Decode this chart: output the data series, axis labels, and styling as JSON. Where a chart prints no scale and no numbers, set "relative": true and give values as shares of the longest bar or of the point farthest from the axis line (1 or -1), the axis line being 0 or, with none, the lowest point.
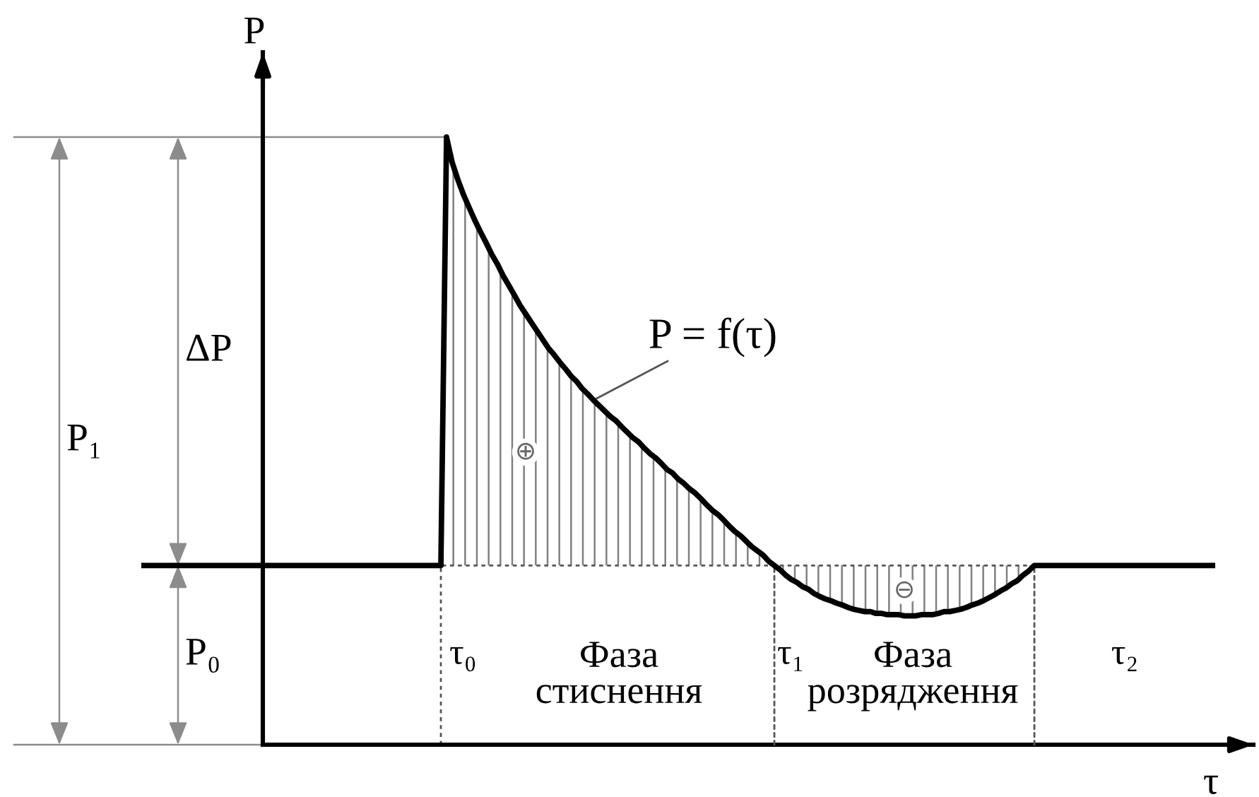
{
  "chart_data": {
    "type": "line",
    "relative": true,
    "xlabel": "τ",
    "ylabel": "P",
    "categories": [
      null,
      null,
      null,
      null,
      null,
      null,
      null,
      null,
      null,
      null,
      null,
      null,
      null,
      null,
      null,
      null,
      null,
      null,
      null,
      null,
      null,
      null,
      null,
      null,
      null,
      null,
      null,
      null,
      null,
      null,
      null,
      null,
      null,
      null,
      null,
      null,
      null,
      null,
      null,
      null,
      null,
      null,
      null,
      null,
      null,
      null,
      null,
      null,
      null,
      null,
      null,
      null,
      null,
      null,
      null,
      null,
      null,
      null,
      null,
      null,
      null,
      null,
      null,
      null,
      null,
      null,
      null,
      null,
      null,
      null,
      null,
      null,
      null,
      null,
      null,
      null,
      null,
      null,
      null,
      null,
      null,
      null,
      null,
      null,
      null,
      null,
      null,
      null,
      null,
      null,
      null,
      null,
      null,
      null,
      null,
      null,
      null,
      null,
      null,
      null,
      null,
      null,
      null,
      null,
      null,
      null,
      null,
      null,
      null,
      null,
      null,
      null,
      null,
      null,
      null,
      null,
      null,
      null,
      null,
      null,
      null,
      null,
      null,
      null,
      null,
      null,
      null,
      null,
      null,
      null,
      null,
      null,
      null,
      null,
      null,
      null,
      null,
      null,
      null,
      null,
      null,
      null,
      null,
      null,
      null,
      null,
      null,
      null,
      null,
      null,
      null,
      null,
      null,
      null,
      null,
      null,
      null,
      null,
      null,
      null,
      null,
      null,
      null,
      null,
      null,
      null,
      null,
      null,
      null,
      null,
      null,
      null,
      null,
      null,
      null,
      null,
      null,
      null,
      null,
      null,
      null,
      null,
      null,
      null,
      null,
      null,
      null,
      null,
      null,
      null,
      null
    ],
    "series": [
      {
        "name": "P = f(τ)",
        "color": "#000000",
        "values": [
          0.295,
          0.295,
          0.295,
          0.295,
          0.295,
          0.295,
          0.295,
          0.295,
          0.295,
          0.295,
          0.295,
          0.295,
          0.295,
          0.295,
          0.295,
          0.295,
          0.295,
          0.295,
          0.295,
          0.295,
          0.295,
          0.295,
          0.295,
          0.295,
          0.295,
          0.295,
          0.295,
          0.295,
          0.295,
          0.295,
          0.295,
          0.295,
          0.295,
          0.295,
          0.295,
          0.295,
          0.295,
          0.295,
          0.295,
          0.295,
          0.295,
          0.295,
          0.295,
          0.295,
          0.295,
          0.295,
          0.295,
          0.295,
          0.295,
          0.295,
          0.295,
          0.295,
          0.295,
          0.295,
          1.0,
          0.958,
          0.93,
          0.905,
          0.884,
          0.863,
          0.844,
          0.826,
          0.807,
          0.791,
          0.772,
          0.756,
          0.74,
          0.723,
          0.709,
          0.695,
          0.681,
          0.667,
          0.653,
          0.642,
          0.63,
          0.619,
          0.607,
          0.598,
          0.586,
          0.577,
          0.567,
          0.558,
          0.549,
          0.54,
          0.533,
          0.523,
          0.514,
          0.505,
          0.498,
          0.488,
          0.479,
          0.472,
          0.463,
          0.453,
          0.447,
          0.437,
          0.43,
          0.421,
          0.414,
          0.405,
          0.395,
          0.386,
          0.379,
          0.37,
          0.36,
          0.351,
          0.344,
          0.335,
          0.326,
          0.319,
          0.312,
          0.302,
          0.295,
          0.288,
          0.279,
          0.272,
          0.267,
          0.26,
          0.256,
          0.249,
          0.244,
          0.24,
          0.237,
          0.233,
          0.23,
          0.226,
          0.223,
          0.221,
          0.219,
          0.219,
          0.216,
          0.216,
          0.214,
          0.214,
          0.214,
          0.212,
          0.212,
          0.212,
          0.214,
          0.214,
          0.214,
          0.216,
          0.219,
          0.219,
          0.221,
          0.223,
          0.226,
          0.23,
          0.233,
          0.237,
          0.242,
          0.247,
          0.253,
          0.258,
          0.265,
          0.27,
          0.279,
          0.286,
          0.295,
          0.295,
          0.295,
          0.295,
          0.295,
          0.295,
          0.295,
          0.295,
          0.295,
          0.295,
          0.295,
          0.295,
          0.295,
          0.295,
          0.295,
          0.295,
          0.295,
          0.295,
          0.295,
          0.295,
          0.295,
          0.295,
          0.295,
          0.295,
          0.295,
          0.295,
          0.295,
          0.295,
          0.295,
          0.295,
          0.295,
          0.295,
          0.295
        ],
        "lower": [
          null,
          null,
          null,
          null,
          null,
          null,
          null,
          null,
          null,
          null,
          null,
          null,
          null,
          null,
          null,
          null,
          null,
          null,
          null,
          null,
          null,
          null,
          null,
          null,
          null,
          null,
          null,
          null,
          null,
          null,
          null,
          null,
          null,
          null,
          null,
          null,
          null,
          null,
          null,
          null,
          null,
          null,
          null,
          null,
          null,
          null,
          null,
          null,
          null,
          null,
          null,
          null,
          null,
          null,
          0.295,
          0.295,
          0.295,
          0.295,
          0.295,
          0.295,
          0.295,
          0.295,
          0.295,
          0.295,
          0.295,
          0.295,
          0.295,
          0.295,
          0.295,
          0.295,
          0.295,
          0.295,
          0.295,
          0.295,
          0.295,
          0.295,
          0.295,
          0.295,
          0.295,
          0.295,
          0.295,
          0.295,
          0.295,
          0.295,
          0.295,
          0.295,
          0.295,
          0.295,
          0.295,
          0.295,
          0.295,
          0.295,
          0.295,
          0.295,
          0.295,
          0.295,
          0.295,
          0.295,
          0.295,
          0.295,
          0.295,
          0.295,
          0.295,
          0.295,
          0.295,
          0.295,
          0.295,
          0.295,
          0.295,
          0.295,
          0.295,
          0.295,
          0.295,
          0.288,
          0.279,
          0.272,
          0.267,
          0.26,
          0.256,
          0.249,
          0.244,
          0.24,
          0.237,
          0.233,
          0.23,
          0.226,
          0.223,
          0.221,
          0.219,
          0.219,
          0.216,
          0.216,
          0.214,
          0.214,
          0.214,
          0.212,
          0.212,
          0.212,
          0.214,
          0.214,
          0.214,
          0.216,
          0.219,
          0.219,
          0.221,
          0.223,
          0.226,
          0.23,
          0.233,
          0.237,
          0.242,
          0.247,
          0.253,
          0.258,
          0.265,
          0.27,
          0.279,
          0.286,
          0.295,
          null,
          null,
          null,
          null,
          null,
          null,
          null,
          null,
          null,
          null,
          null,
          null,
          null,
          null,
          null,
          null,
          null,
          null,
          null,
          null,
          null,
          null,
          null,
          null,
          null,
          null,
          null,
          null,
          null,
          null,
          null,
          null
        ],
        "upper": [
          null,
          null,
          null,
          null,
          null,
          null,
          null,
          null,
          null,
          null,
          null,
          null,
          null,
          null,
          null,
          null,
          null,
          null,
          null,
          null,
          null,
          null,
          null,
          null,
          null,
          null,
          null,
          null,
          null,
          null,
          null,
          null,
          null,
          null,
          null,
          null,
          null,
          null,
          null,
          null,
          null,
          null,
          null,
          null,
          null,
          null,
          null,
          null,
          null,
          null,
          null,
          null,
          null,
          null,
          1.0,
          0.958,
          0.93,
          0.905,
          0.884,
          0.863,
          0.844,
          0.826,
          0.807,
          0.791,
          0.772,
          0.756,
          0.74,
          0.723,
          0.709,
          0.695,
          0.681,
          0.667,
          0.653,
          0.642,
          0.63,
          0.619,
          0.607,
          0.598,
          0.586,
          0.577,
          0.567,
          0.558,
          0.549,
          0.54,
          0.533,
          0.523,
          0.514,
          0.505,
          0.498,
          0.488,
          0.479,
          0.472,
          0.463,
          0.453,
          0.447,
          0.437,
          0.43,
          0.421,
          0.414,
          0.405,
          0.395,
          0.386,
          0.379,
          0.37,
          0.36,
          0.351,
          0.344,
          0.335,
          0.326,
          0.319,
          0.312,
          0.302,
          0.295,
          0.295,
          0.295,
          0.295,
          0.295,
          0.295,
          0.295,
          0.295,
          0.295,
          0.295,
          0.295,
          0.295,
          0.295,
          0.295,
          0.295,
          0.295,
          0.295,
          0.295,
          0.295,
          0.295,
          0.295,
          0.295,
          0.295,
          0.295,
          0.295,
          0.295,
          0.295,
          0.295,
          0.295,
          0.295,
          0.295,
          0.295,
          0.295,
          0.295,
          0.295,
          0.295,
          0.295,
          0.295,
          0.295,
          0.295,
          0.295,
          0.295,
          0.295,
          0.295,
          0.295,
          0.295,
          0.295,
          null,
          null,
          null,
          null,
          null,
          null,
          null,
          null,
          null,
          null,
          null,
          null,
          null,
          null,
          null,
          null,
          null,
          null,
          null,
          null,
          null,
          null,
          null,
          null,
          null,
          null,
          null,
          null,
          null,
          null,
          null,
          null
        ]
      }
    ],
    "ref_lines": [
      {
        "axis": "y",
        "value": 1.0,
        "color": "#8c8c8c"
      },
      {
        "axis": "y",
        "value": 0,
        "color": "#8c8c8c"
      },
      {
        "axis": "y",
        "value": 0.295,
        "color": "#555555",
        "line_style": "dotted"
      }
    ],
    "annotations": [
      "P₁",
      "ΔP",
      "P₀",
      "τ₀",
      "τ₁",
      "τ₂",
      "Фаза\nстиснення",
      "Фаза\nрозрядження",
      "⊕",
      "⊖"
    ]
  }
}
